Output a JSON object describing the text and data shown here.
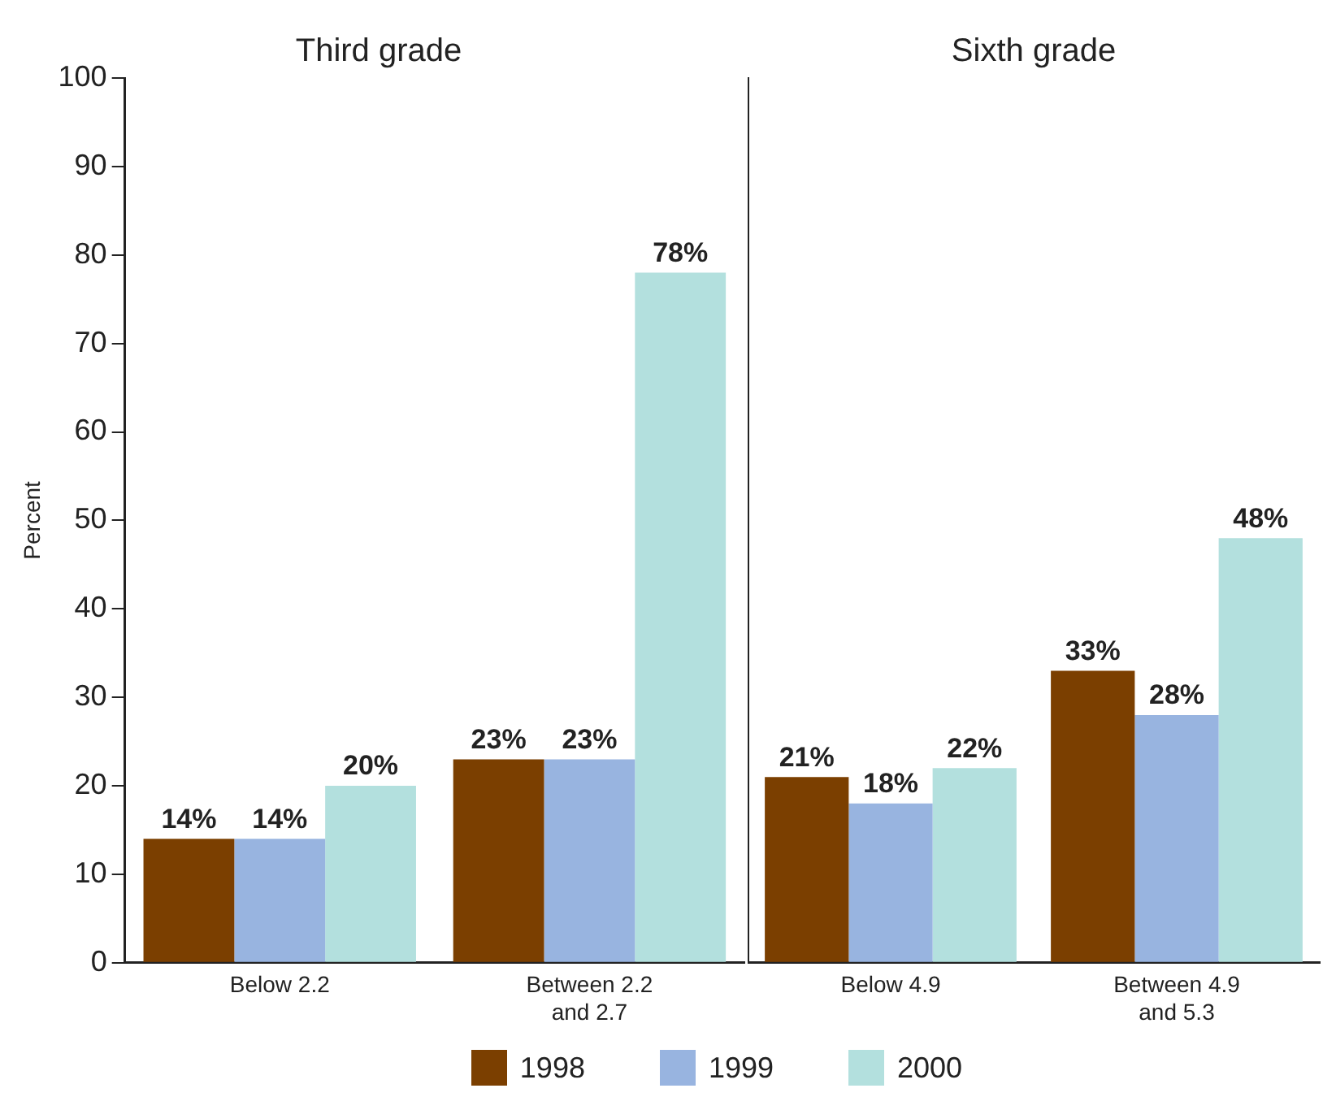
{
  "chart_data": [
    {
      "type": "bar",
      "title": "Third grade",
      "ylabel": "Percent",
      "categories": [
        "Below 2.2",
        "Between 2.2\nand 2.7"
      ],
      "ylim": [
        0,
        100
      ],
      "yticks": [
        0,
        10,
        20,
        30,
        40,
        50,
        60,
        70,
        80,
        90,
        100
      ],
      "grid": false,
      "legend": "bottom",
      "series": [
        {
          "name": "1998",
          "color": "#7b3f00",
          "values": [
            14,
            23
          ],
          "value_labels": [
            "14%",
            "23%"
          ]
        },
        {
          "name": "1999",
          "color": "#98b4e0",
          "values": [
            14,
            23
          ],
          "value_labels": [
            "14%",
            "23%"
          ]
        },
        {
          "name": "2000",
          "color": "#b3e0de",
          "values": [
            20,
            78
          ],
          "value_labels": [
            "20%",
            "78%"
          ]
        }
      ]
    },
    {
      "type": "bar",
      "title": "Sixth grade",
      "categories": [
        "Below 4.9",
        "Between 4.9\nand 5.3"
      ],
      "ylim": [
        0,
        100
      ],
      "yticks": [
        0,
        10,
        20,
        30,
        40,
        50,
        60,
        70,
        80,
        90,
        100
      ],
      "grid": false,
      "tick_labels": "x",
      "series": [
        {
          "name": "1998",
          "color": "#7b3f00",
          "values": [
            21,
            33
          ],
          "value_labels": [
            "21%",
            "33%"
          ]
        },
        {
          "name": "1999",
          "color": "#98b4e0",
          "values": [
            18,
            28
          ],
          "value_labels": [
            "18%",
            "28%"
          ]
        },
        {
          "name": "2000",
          "color": "#b3e0de",
          "values": [
            22,
            48
          ],
          "value_labels": [
            "22%",
            "48%"
          ]
        }
      ]
    }
  ]
}
